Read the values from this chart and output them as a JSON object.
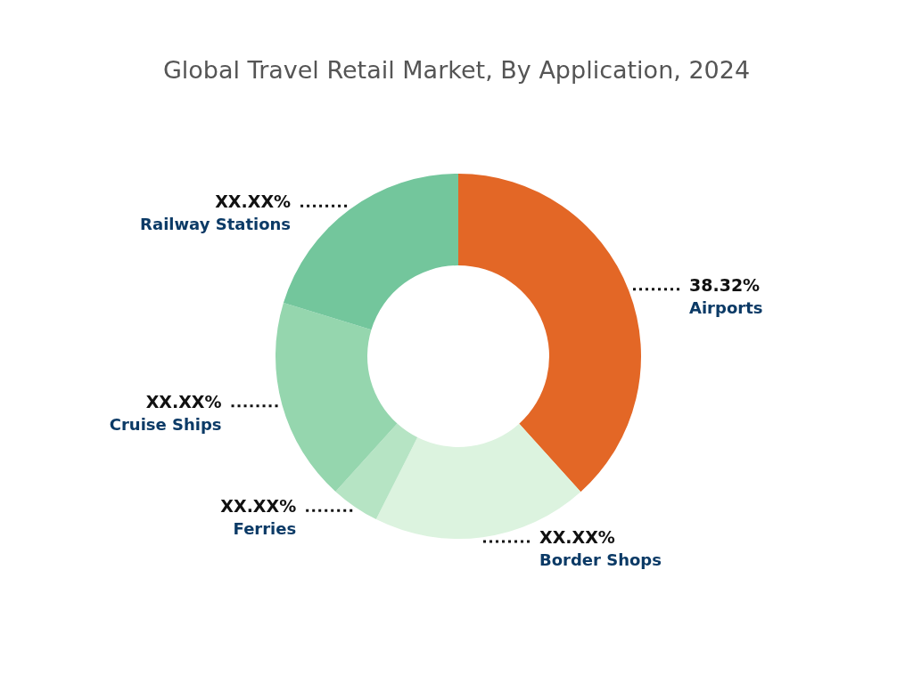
{
  "chart_data": {
    "type": "donut",
    "title": "Global Travel Retail Market, By Application, 2024",
    "categories": [
      "Airports",
      "Border Shops",
      "Ferries",
      "Cruise Ships",
      "Railway Stations"
    ],
    "values": [
      38.32,
      19.1,
      4.3,
      18.0,
      20.28
    ],
    "colors": [
      "#e36726",
      "#dcf3df",
      "#b6e4c4",
      "#95d6ae",
      "#73c69c"
    ],
    "value_labels": [
      "38.32%",
      "XX.XX%",
      "XX.XX%",
      "XX.XX%",
      "XX.XX%"
    ]
  }
}
